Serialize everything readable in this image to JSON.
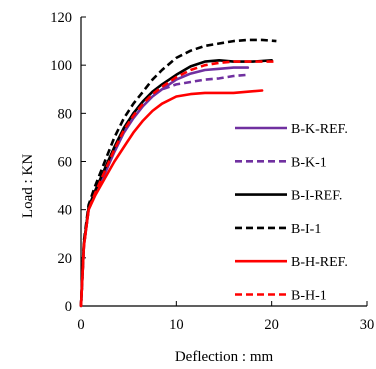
{
  "chart_data": {
    "type": "line",
    "title": "",
    "xlabel": "Deflection : mm",
    "ylabel": "Load : KN",
    "xlim": [
      0,
      30
    ],
    "ylim": [
      0,
      120
    ],
    "xticks": [
      0,
      10,
      20,
      30
    ],
    "yticks": [
      0,
      20,
      40,
      60,
      80,
      100,
      120
    ],
    "grid": false,
    "legend_position": "right",
    "series": [
      {
        "name": "B-K-REF.",
        "color": "#7030A0",
        "dash": "solid",
        "x": [
          0,
          0.3,
          0.8,
          1.5,
          2.5,
          3.5,
          4.5,
          5.5,
          6.5,
          7.5,
          8.5,
          10,
          11.5,
          13,
          14.5,
          16,
          17.5
        ],
        "y": [
          0,
          25,
          40,
          47,
          55,
          64,
          72,
          78,
          83,
          87,
          90,
          94,
          96.5,
          98,
          98.5,
          99,
          99
        ]
      },
      {
        "name": "B-K-1",
        "color": "#7030A0",
        "dash": "dashed",
        "x": [
          0,
          0.3,
          0.8,
          1.5,
          2.5,
          3.5,
          4.5,
          5.5,
          6.5,
          7.5,
          8.5,
          10,
          11.5,
          13,
          14.5,
          16,
          17.5
        ],
        "y": [
          0,
          25,
          40,
          47,
          56,
          65,
          73,
          80,
          85,
          88,
          90,
          92,
          93,
          94,
          94.5,
          95.5,
          96
        ]
      },
      {
        "name": "B-I-REF.",
        "color": "#000000",
        "dash": "solid",
        "x": [
          0,
          0.3,
          0.8,
          1.5,
          2.5,
          3.5,
          4.5,
          5.5,
          6.5,
          7.5,
          8.5,
          10,
          11.5,
          13,
          14.5,
          16,
          18,
          20
        ],
        "y": [
          0,
          26,
          41,
          48,
          57,
          66,
          74,
          80,
          85,
          89,
          92,
          96,
          99.5,
          101.5,
          102,
          101.5,
          101.5,
          102
        ]
      },
      {
        "name": "B-I-1",
        "color": "#000000",
        "dash": "dashed",
        "x": [
          0,
          0.3,
          0.8,
          1.5,
          2.5,
          3.5,
          4.5,
          5.5,
          6.5,
          7.5,
          8.5,
          10,
          11.5,
          13,
          14.5,
          16,
          17.5,
          19,
          20.5
        ],
        "y": [
          0,
          27,
          42,
          50,
          60,
          70,
          78,
          84,
          89,
          94,
          98,
          103,
          106,
          108,
          109,
          110,
          110.5,
          110.5,
          110
        ]
      },
      {
        "name": "B-H-REF.",
        "color": "#FF0000",
        "dash": "solid",
        "x": [
          0,
          0.3,
          0.8,
          1.5,
          2.5,
          3.5,
          4.5,
          5.5,
          6.5,
          7.5,
          8.5,
          10,
          11.5,
          13,
          14.5,
          16,
          17.5,
          19
        ],
        "y": [
          0,
          25,
          40,
          46,
          53,
          60,
          66,
          72,
          77,
          81,
          84,
          87,
          88,
          88.5,
          88.5,
          88.5,
          89,
          89.5
        ]
      },
      {
        "name": "B-H-1",
        "color": "#FF0000",
        "dash": "dashed",
        "x": [
          0,
          0.3,
          0.8,
          1.5,
          2.5,
          3.5,
          4.5,
          5.5,
          6.5,
          7.5,
          8.5,
          10,
          11.5,
          13,
          14.5,
          16,
          18,
          20.5
        ],
        "y": [
          0,
          25,
          40,
          47,
          56,
          65,
          73,
          79,
          84,
          88,
          91,
          95,
          98,
          100,
          101,
          101.5,
          101.5,
          101.5
        ]
      }
    ]
  }
}
